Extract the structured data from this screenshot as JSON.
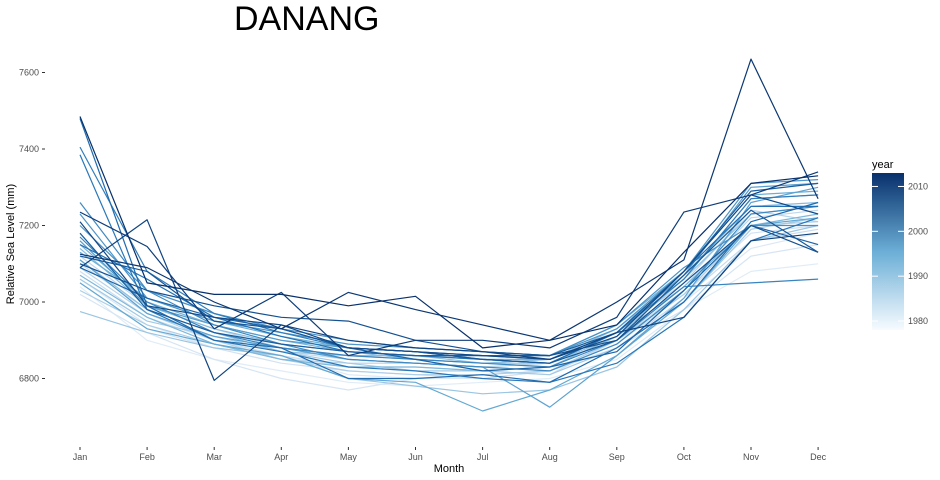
{
  "chart_data": {
    "type": "line",
    "title": "DANANG",
    "xlabel": "Month",
    "ylabel": "Relative Sea Level (mm)",
    "categories": [
      "Jan",
      "Feb",
      "Mar",
      "Apr",
      "May",
      "Jun",
      "Jul",
      "Aug",
      "Sep",
      "Oct",
      "Nov",
      "Dec"
    ],
    "y_ticks": [
      6800,
      7000,
      7200,
      7400,
      7600
    ],
    "ylim": [
      6650,
      7650
    ],
    "grid": false,
    "legend": {
      "title": "year",
      "placement": "right",
      "type": "colorbar",
      "range": [
        1978,
        2013
      ],
      "ticks": [
        1980,
        1990,
        2000,
        2010
      ],
      "color_low": "#f7fbff",
      "color_high": "#08306b"
    },
    "series": [
      {
        "year": 1978,
        "values": [
          7040,
          6900,
          6850,
          6820,
          6790,
          6780,
          6790,
          6800,
          6850,
          6980,
          7080,
          7100
        ]
      },
      {
        "year": 1979,
        "values": [
          7060,
          6940,
          6880,
          6860,
          6810,
          6800,
          6800,
          6820,
          6900,
          7000,
          7140,
          7180
        ]
      },
      {
        "year": 1980,
        "values": [
          7020,
          6920,
          6850,
          6800,
          6770,
          6800,
          6810,
          6790,
          6880,
          6980,
          7120,
          7150
        ]
      },
      {
        "year": 1981,
        "values": [
          7050,
          6930,
          6880,
          6840,
          6820,
          6810,
          6800,
          6820,
          6890,
          7020,
          7180,
          7200
        ]
      },
      {
        "year": 1982,
        "values": [
          7080,
          6960,
          6900,
          6860,
          6830,
          6830,
          6820,
          6810,
          6900,
          7030,
          7200,
          7220
        ]
      },
      {
        "year": 1983,
        "values": [
          7100,
          6980,
          6920,
          6870,
          6850,
          6840,
          6830,
          6820,
          6880,
          7010,
          7160,
          7190
        ]
      },
      {
        "year": 1984,
        "values": [
          7120,
          6990,
          6930,
          6880,
          6860,
          6850,
          6840,
          6830,
          6910,
          7040,
          7220,
          7240
        ]
      },
      {
        "year": 1985,
        "values": [
          7090,
          6970,
          6900,
          6850,
          6840,
          6840,
          6830,
          6840,
          6920,
          7050,
          7240,
          7210
        ]
      },
      {
        "year": 1986,
        "values": [
          7030,
          6940,
          6890,
          6850,
          6820,
          6810,
          6810,
          6820,
          6900,
          7020,
          7200,
          7210
        ]
      },
      {
        "year": 1987,
        "values": [
          7060,
          6950,
          6910,
          6870,
          6840,
          6820,
          6820,
          6810,
          6880,
          7000,
          7190,
          7220
        ]
      },
      {
        "year": 1988,
        "values": [
          6975,
          6920,
          6880,
          6860,
          6800,
          6780,
          6760,
          6770,
          6830,
          6980,
          7160,
          7200
        ]
      },
      {
        "year": 1989,
        "values": [
          7110,
          6980,
          6920,
          6870,
          6860,
          6860,
          6840,
          6840,
          6910,
          7060,
          7230,
          7250
        ]
      },
      {
        "year": 1990,
        "values": [
          7140,
          6990,
          6930,
          6890,
          6870,
          6850,
          6840,
          6850,
          6930,
          7070,
          7250,
          7260
        ]
      },
      {
        "year": 1991,
        "values": [
          7070,
          6960,
          6890,
          6850,
          6830,
          6830,
          6820,
          6830,
          6910,
          7040,
          7200,
          7230
        ]
      },
      {
        "year": 1992,
        "values": [
          7150,
          7000,
          6940,
          6900,
          6870,
          6860,
          6850,
          6850,
          6920,
          7060,
          7270,
          7280
        ]
      },
      {
        "year": 1993,
        "values": [
          7130,
          7010,
          6950,
          6910,
          6880,
          6870,
          6860,
          6860,
          6940,
          7080,
          7280,
          7290
        ]
      },
      {
        "year": 1994,
        "values": [
          7050,
          6930,
          6890,
          6860,
          6800,
          6790,
          6715,
          6770,
          6860,
          7000,
          7200,
          7220
        ]
      },
      {
        "year": 1995,
        "values": [
          7110,
          6970,
          6910,
          6880,
          6850,
          6840,
          6830,
          6725,
          6860,
          7010,
          7260,
          7300
        ]
      },
      {
        "year": 1996,
        "values": [
          7160,
          6990,
          6940,
          6900,
          6880,
          6870,
          6860,
          6850,
          6920,
          7070,
          7300,
          7310
        ]
      },
      {
        "year": 1997,
        "values": [
          7230,
          7010,
          6950,
          6920,
          6890,
          6880,
          6870,
          6860,
          6930,
          7080,
          7310,
          7320
        ]
      },
      {
        "year": 1998,
        "values": [
          7200,
          7030,
          6970,
          6930,
          6900,
          6880,
          6870,
          6860,
          6940,
          7090,
          7200,
          7200
        ]
      },
      {
        "year": 1999,
        "values": [
          7260,
          7030,
          6940,
          6890,
          6850,
          6840,
          6830,
          6820,
          6890,
          7030,
          7230,
          7250
        ]
      },
      {
        "year": 2000,
        "values": [
          7170,
          7000,
          6920,
          6880,
          6860,
          6850,
          6840,
          6830,
          6900,
          7040,
          7050,
          7060
        ]
      },
      {
        "year": 2001,
        "values": [
          7405,
          7080,
          6970,
          6920,
          6880,
          6870,
          6850,
          6840,
          6920,
          7060,
          7270,
          7280
        ]
      },
      {
        "year": 2002,
        "values": [
          7385,
          6980,
          6900,
          6870,
          6830,
          6820,
          6800,
          6790,
          6840,
          6960,
          7160,
          7220
        ]
      },
      {
        "year": 2003,
        "values": [
          7150,
          7060,
          6960,
          6910,
          6870,
          6860,
          6850,
          6840,
          6920,
          7080,
          7250,
          7250
        ]
      },
      {
        "year": 2004,
        "values": [
          7480,
          6990,
          6900,
          6880,
          6800,
          6800,
          6810,
          6790,
          6880,
          7000,
          7210,
          7260
        ]
      },
      {
        "year": 2005,
        "values": [
          7090,
          7010,
          6960,
          6930,
          6880,
          6850,
          6820,
          6830,
          6870,
          7030,
          7200,
          7150
        ]
      },
      {
        "year": 2006,
        "values": [
          7180,
          6980,
          6920,
          6890,
          6870,
          6860,
          6860,
          6860,
          6920,
          7080,
          7290,
          7310
        ]
      },
      {
        "year": 2007,
        "values": [
          7120,
          7080,
          6950,
          6930,
          6880,
          6870,
          6850,
          6840,
          6900,
          7070,
          7240,
          7130
        ]
      },
      {
        "year": 2008,
        "values": [
          7100,
          7030,
          6990,
          6960,
          6950,
          6900,
          6870,
          6860,
          6900,
          7050,
          7200,
          7130
        ]
      },
      {
        "year": 2009,
        "values": [
          7210,
          6990,
          6960,
          6940,
          6880,
          6870,
          6860,
          6850,
          6910,
          7080,
          7280,
          7230
        ]
      },
      {
        "year": 2010,
        "values": [
          7090,
          7215,
          6795,
          6940,
          6900,
          6880,
          6870,
          6850,
          6920,
          6960,
          7160,
          7180
        ]
      },
      {
        "year": 2011,
        "values": [
          7235,
          7145,
          6930,
          7025,
          6860,
          6900,
          6900,
          6880,
          6960,
          7235,
          7280,
          7340
        ]
      },
      {
        "year": 2012,
        "values": [
          7125,
          7090,
          7000,
          6930,
          7025,
          6980,
          6940,
          6900,
          7000,
          7110,
          7635,
          7270
        ]
      },
      {
        "year": 2013,
        "values": [
          7485,
          7050,
          7020,
          7020,
          6990,
          7015,
          6880,
          6900,
          6940,
          7130,
          7310,
          7330
        ]
      }
    ]
  }
}
